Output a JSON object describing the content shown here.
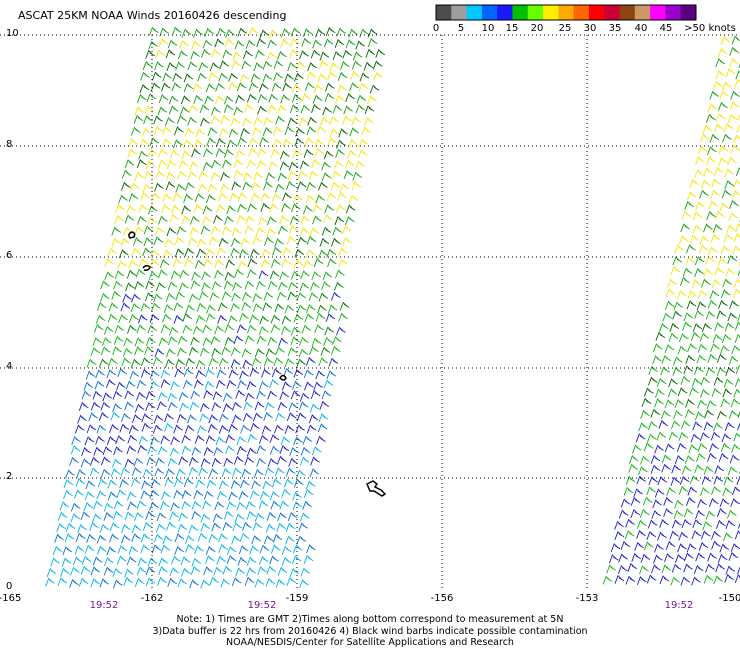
{
  "title": "ASCAT 25KM NOAA Winds 20160426 descending",
  "colorbar": {
    "colors": [
      "#4d4d4d",
      "#9e9e9e",
      "#00c8ff",
      "#0064ff",
      "#1a1aff",
      "#00c000",
      "#66ff00",
      "#ffee00",
      "#ffaa00",
      "#ff6600",
      "#ff0000",
      "#cc0033",
      "#8b4513",
      "#cc9966",
      "#ff00ff",
      "#9900cc",
      "#5a0080"
    ],
    "labels": [
      "0",
      "5",
      "10",
      "15",
      "20",
      "25",
      "30",
      "35",
      "40",
      "45",
      ">50 knots"
    ]
  },
  "axes": {
    "lat_labels": [
      "10",
      "8",
      "6",
      "4",
      "2",
      "0"
    ],
    "lon_labels": [
      "-165",
      "-162",
      "-159",
      "-156",
      "-153",
      "-150"
    ]
  },
  "times": [
    "19:52",
    "19:52",
    "19:52"
  ],
  "notes": [
    "Note: 1) Times are GMT 2)Times along bottom correspond to measurement at 5N",
    "3)Data buffer is 22 hrs from 20160426 4) Black wind barbs indicate possible contamination",
    "NOAA/NESDIS/Center for Satellite Applications and Research"
  ]
}
